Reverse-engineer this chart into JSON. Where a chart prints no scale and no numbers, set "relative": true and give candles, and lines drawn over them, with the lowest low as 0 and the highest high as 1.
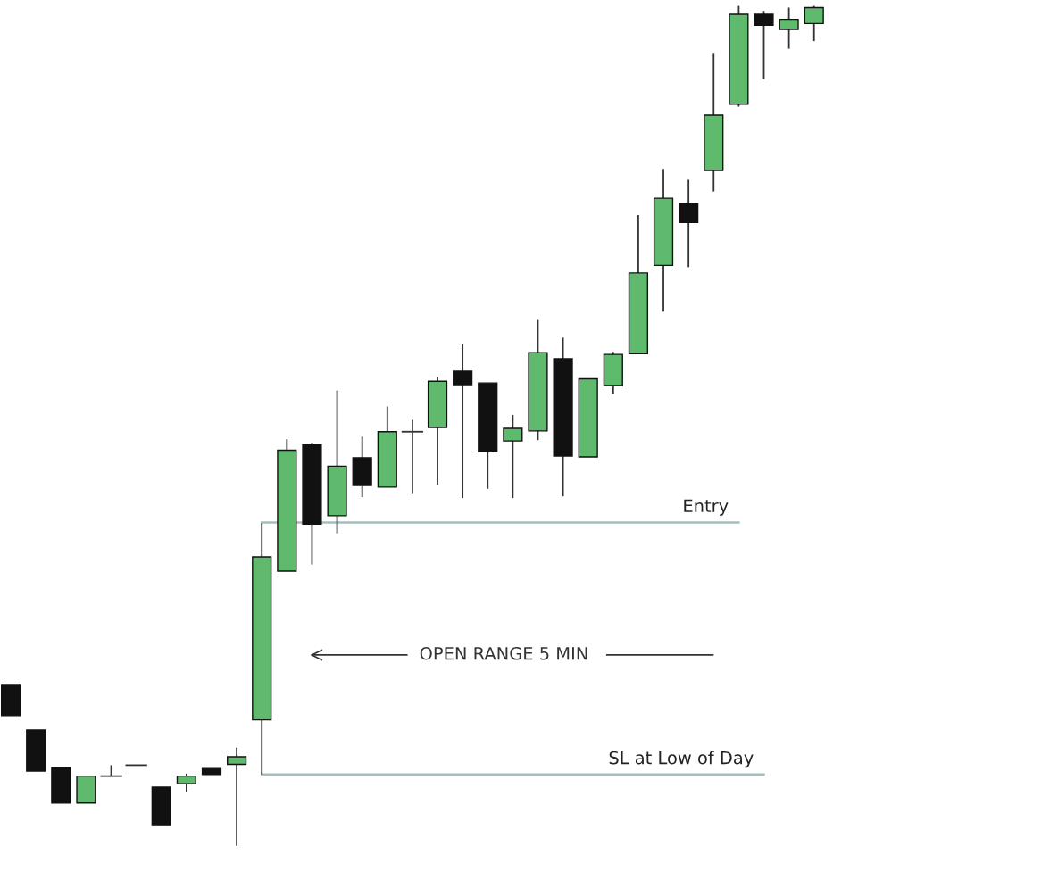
{
  "chart_data": {
    "type": "candlestick",
    "relative": true,
    "categories": [
      null,
      null,
      null,
      null,
      null,
      null,
      null,
      null,
      null,
      null,
      null,
      null,
      null,
      null,
      null,
      null,
      null,
      null,
      null,
      null,
      null,
      null,
      null,
      null,
      null,
      null,
      null,
      null,
      null,
      null,
      null,
      null,
      null
    ],
    "ohlc": [
      [
        0.191,
        0.191,
        0.155,
        0.155
      ],
      [
        0.138,
        0.138,
        0.089,
        0.089
      ],
      [
        0.093,
        0.093,
        0.051,
        0.051
      ],
      [
        0.051,
        0.083,
        0.051,
        0.083
      ],
      [
        0.083,
        0.096,
        0.083,
        0.083
      ],
      [
        0.096,
        0.096,
        0.096,
        0.096
      ],
      [
        0.07,
        0.07,
        0.024,
        0.024
      ],
      [
        0.074,
        0.086,
        0.064,
        0.083
      ],
      [
        0.092,
        0.092,
        0.085,
        0.085
      ],
      [
        0.097,
        0.117,
        0.0,
        0.106
      ],
      [
        0.15,
        0.384,
        0.085,
        0.344
      ],
      [
        0.327,
        0.484,
        0.327,
        0.471
      ],
      [
        0.478,
        0.48,
        0.335,
        0.383
      ],
      [
        0.393,
        0.542,
        0.372,
        0.452
      ],
      [
        0.462,
        0.487,
        0.415,
        0.429
      ],
      [
        0.427,
        0.523,
        0.427,
        0.493
      ],
      [
        0.493,
        0.507,
        0.42,
        0.493
      ],
      [
        0.498,
        0.558,
        0.43,
        0.553
      ],
      [
        0.565,
        0.597,
        0.414,
        0.549
      ],
      [
        0.551,
        0.551,
        0.425,
        0.469
      ],
      [
        0.482,
        0.513,
        0.414,
        0.497
      ],
      [
        0.494,
        0.626,
        0.483,
        0.587
      ],
      [
        0.58,
        0.605,
        0.416,
        0.464
      ],
      [
        0.463,
        0.556,
        0.463,
        0.556
      ],
      [
        0.548,
        0.588,
        0.538,
        0.585
      ],
      [
        0.586,
        0.751,
        0.586,
        0.682
      ],
      [
        0.691,
        0.806,
        0.636,
        0.771
      ],
      [
        0.764,
        0.793,
        0.689,
        0.742
      ],
      [
        0.804,
        0.944,
        0.779,
        0.87
      ],
      [
        0.883,
        1.0,
        0.88,
        0.99
      ],
      [
        0.99,
        0.994,
        0.913,
        0.977
      ],
      [
        0.972,
        0.998,
        0.949,
        0.984
      ],
      [
        0.979,
        1.0,
        0.958,
        0.998
      ]
    ],
    "colors": [
      "#111111",
      "#111111",
      "#111111",
      "#5fba6e",
      "#333333",
      "#333333",
      "#111111",
      "#5fba6e",
      "#111111",
      "#5fba6e",
      "#5fba6e",
      "#5fba6e",
      "#111111",
      "#5fba6e",
      "#111111",
      "#5fba6e",
      "#333333",
      "#5fba6e",
      "#111111",
      "#111111",
      "#5fba6e",
      "#5fba6e",
      "#111111",
      "#5fba6e",
      "#5fba6e",
      "#5fba6e",
      "#5fba6e",
      "#111111",
      "#5fba6e",
      "#5fba6e",
      "#111111",
      "#5fba6e",
      "#5fba6e"
    ],
    "ref_lines": [
      {
        "axis": "y",
        "value": 0.385,
        "label": "Entry",
        "color": "#a9bcbc"
      },
      {
        "axis": "y",
        "value": 0.085,
        "label": "SL at Low of Day",
        "color": "#a9bcbc"
      }
    ],
    "annotations": [
      "OPEN RANGE 5 MIN"
    ],
    "legend": false
  }
}
